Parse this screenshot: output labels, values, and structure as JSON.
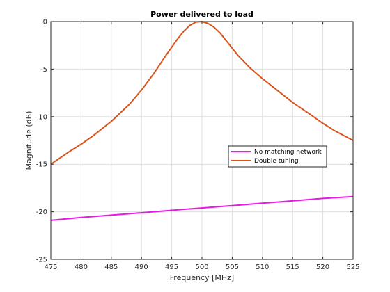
{
  "chart_data": {
    "type": "line",
    "title": "Power delivered to load",
    "xlabel": "Frequency [MHz]",
    "ylabel": "Magnitude (dB)",
    "xlim": [
      475,
      525
    ],
    "ylim": [
      -25,
      0
    ],
    "xticks": [
      475,
      480,
      485,
      490,
      495,
      500,
      505,
      510,
      515,
      520,
      525
    ],
    "yticks": [
      0,
      -5,
      -10,
      -15,
      -20,
      -25
    ],
    "grid": true,
    "legend_position": "center-right",
    "series": [
      {
        "name": "No matching network",
        "color": "#e619e6",
        "x": [
          475,
          480,
          485,
          490,
          495,
          500,
          505,
          510,
          515,
          520,
          525
        ],
        "y": [
          -20.9,
          -20.6,
          -20.35,
          -20.1,
          -19.85,
          -19.6,
          -19.35,
          -19.1,
          -18.85,
          -18.6,
          -18.4
        ]
      },
      {
        "name": "Double tuning",
        "color": "#d95319",
        "x": [
          475,
          478,
          480,
          482,
          485,
          488,
          490,
          492,
          494,
          496,
          497,
          498,
          499,
          500,
          501,
          502,
          503,
          504,
          505,
          506,
          508,
          510,
          512,
          515,
          518,
          520,
          522,
          525
        ],
        "y": [
          -15.0,
          -13.7,
          -12.9,
          -12.0,
          -10.5,
          -8.7,
          -7.2,
          -5.5,
          -3.6,
          -1.8,
          -1.0,
          -0.4,
          -0.05,
          0.0,
          -0.2,
          -0.6,
          -1.2,
          -2.0,
          -2.8,
          -3.6,
          -4.9,
          -6.0,
          -7.0,
          -8.5,
          -9.8,
          -10.7,
          -11.5,
          -12.5
        ]
      }
    ]
  }
}
